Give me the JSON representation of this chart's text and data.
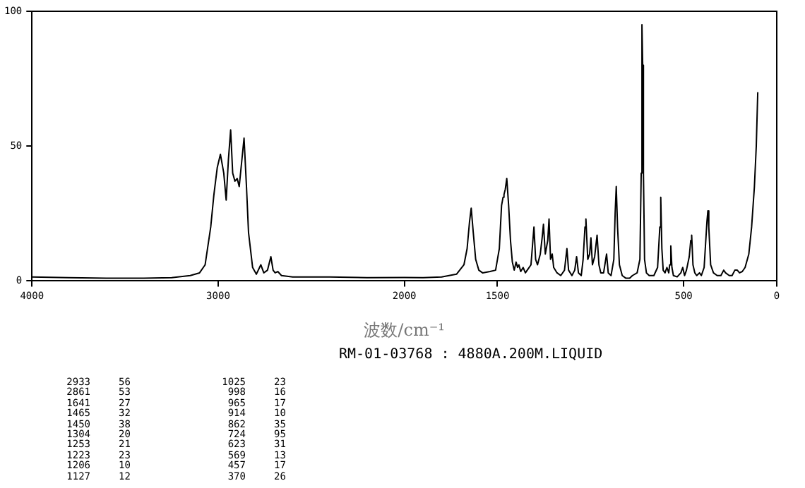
{
  "chart_data": {
    "type": "line",
    "xlabel": "波数/cm⁻¹",
    "annotations": [
      "RM-01-03768 : 4880A.200M.LIQUID",
      "2933 56",
      "2861 53",
      "1641 27",
      "1465 32",
      "1450 38",
      "1304 20",
      "1253 21",
      "1223 23",
      "1206 10",
      "1127 12",
      "1025 23",
      "998 16",
      "965 17",
      "914 10",
      "862 35",
      "724 95",
      "623 31",
      "569 13",
      "457 17",
      "370 26"
    ],
    "xlim": [
      4000,
      0
    ],
    "xticks": [
      4000,
      3000,
      2000,
      1500,
      500,
      0
    ],
    "ylim": [
      0,
      100
    ],
    "yticks": [
      0,
      50,
      100
    ],
    "grid": false,
    "legend": false,
    "marker": "none",
    "line_style": "solid",
    "series": [
      {
        "color": "#000000",
        "x": [
          4000,
          3800,
          3600,
          3400,
          3250,
          3150,
          3100,
          3070,
          3040,
          3023,
          3005,
          2988,
          2970,
          2957,
          2945,
          2933,
          2922,
          2910,
          2898,
          2887,
          2861,
          2848,
          2837,
          2815,
          2795,
          2771,
          2755,
          2735,
          2717,
          2705,
          2694,
          2680,
          2660,
          2600,
          2400,
          2200,
          2000,
          1900,
          1800,
          1720,
          1680,
          1663,
          1650,
          1641,
          1630,
          1617,
          1600,
          1580,
          1540,
          1510,
          1490,
          1478,
          1470,
          1465,
          1458,
          1450,
          1440,
          1430,
          1420,
          1410,
          1400,
          1392,
          1385,
          1375,
          1362,
          1350,
          1340,
          1320,
          1304,
          1295,
          1285,
          1270,
          1260,
          1253,
          1243,
          1230,
          1223,
          1215,
          1206,
          1198,
          1180,
          1160,
          1140,
          1127,
          1118,
          1100,
          1085,
          1075,
          1065,
          1050,
          1040,
          1030,
          1025,
          1015,
          1005,
          998,
          990,
          978,
          965,
          955,
          945,
          930,
          914,
          905,
          890,
          875,
          868,
          862,
          855,
          845,
          830,
          810,
          790,
          775,
          750,
          735,
          728,
          724,
          720,
          716,
          710,
          700,
          685,
          660,
          640,
          628,
          623,
          617,
          610,
          600,
          590,
          580,
          575,
          569,
          563,
          555,
          535,
          515,
          505,
          495,
          485,
          470,
          462,
          457,
          450,
          440,
          430,
          415,
          405,
          390,
          375,
          370,
          365,
          355,
          340,
          320,
          300,
          285,
          275,
          255,
          240,
          225,
          212,
          200,
          185,
          170,
          150,
          135,
          120,
          110,
          102
        ],
        "values": [
          1.5,
          1.2,
          1,
          1,
          1.2,
          2,
          3,
          6,
          20,
          32,
          42,
          47,
          40,
          30,
          45,
          56,
          40,
          37,
          38,
          35,
          53,
          35,
          18,
          5,
          2.5,
          6,
          3,
          4,
          9,
          4,
          3,
          3.5,
          2,
          1.5,
          1.5,
          1.2,
          1.3,
          1.2,
          1.5,
          2.5,
          6,
          12,
          22,
          27,
          18,
          8,
          4,
          3,
          3.5,
          4,
          12,
          28,
          31,
          32,
          34,
          38,
          28,
          15,
          7,
          4,
          7,
          5,
          6,
          3.5,
          5,
          3,
          4,
          6,
          20,
          8,
          6,
          10,
          16,
          21,
          10,
          15,
          23,
          8,
          10,
          5,
          3,
          2,
          4,
          12,
          4,
          2,
          4,
          9,
          3,
          2,
          8,
          20,
          23,
          8,
          10,
          16,
          6,
          9,
          17,
          6,
          3,
          3,
          10,
          3,
          2,
          8,
          25,
          35,
          20,
          6,
          2,
          1,
          1,
          2,
          3,
          8,
          40,
          95,
          80,
          40,
          8,
          3,
          2,
          2,
          5,
          20,
          31,
          12,
          4,
          3,
          5,
          3,
          6,
          13,
          5,
          2,
          1.5,
          3,
          5,
          2,
          4,
          9,
          15,
          17,
          6,
          3,
          2,
          3,
          2,
          5,
          22,
          26,
          20,
          6,
          3,
          2,
          2,
          4,
          3,
          2,
          2,
          4,
          4,
          3,
          3.5,
          5,
          10,
          20,
          35,
          50,
          70
        ]
      }
    ]
  }
}
